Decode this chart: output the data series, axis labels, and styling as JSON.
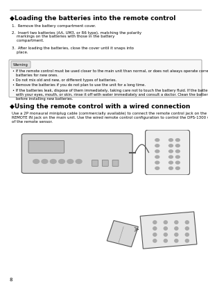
{
  "bg_color": "#ffffff",
  "page_num": "8",
  "section1_title": "◆Loading the batteries into the remote control",
  "section1_steps": [
    "1.  Remove the battery compartment cover.",
    "2.  Insert two batteries (AA, UM3, or R6 type), matching the polarity\n    markings on the batteries with those in the battery\n    compartment.",
    "3.  After loading the batteries, close the cover until it snaps into\n    place."
  ],
  "warning_label": "Warning",
  "warning_bullets": [
    "• If the remote control must be used closer to the main unit than normal, or does not always operate correctly, exchange the\n   batteries for new ones.",
    "• Do not mix old and new, or different types of batteries.",
    "• Remove the batteries if you do not plan to use the unit for a long time.",
    "• If the batteries leak, dispose of them immediately, taking care not to touch the battery fluid. If the battery fluid comes into contact\n   with your eyes, mouth, or skin, rinse it off with water immediately and consult a doctor. Clean the battery compartment thoroughly\n   before installing new batteries."
  ],
  "section2_title": "◆Using the remote control with a wired connection",
  "section2_body": "Use a 2P monaural miniplug cable (commercially available) to connect the remote control jack on the underside of the remote control to the\nREMOTE IN jack on the main unit. Use the wired remote control configuration to control the DPS-1300 without having to be within range\nof the remote sensor.",
  "text_color": "#000000",
  "title_fontsize": 6.5,
  "body_fontsize": 4.0,
  "warning_fontsize": 3.8
}
